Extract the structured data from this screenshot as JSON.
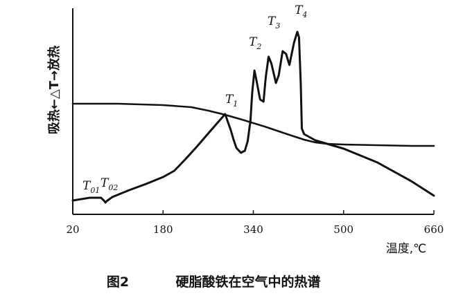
{
  "chart_data": {
    "type": "line",
    "title": "",
    "caption_label": "图2",
    "caption_text": "硬脂酸铁在空气中的热谱",
    "ylabel": "吸热←△T→放热",
    "xlabel": "温度,℃",
    "xlim": [
      20,
      660
    ],
    "xticks": [
      "20",
      "180",
      "340",
      "500",
      "660"
    ],
    "grid": false,
    "legend": "none",
    "line_color": "#111111",
    "series": [
      {
        "role": "dta",
        "x": [
          20,
          35,
          50,
          60,
          70,
          75,
          78,
          80,
          90,
          120,
          150,
          180,
          200,
          220,
          240,
          260,
          275,
          290,
          300,
          305,
          310,
          318,
          325,
          330,
          335,
          338,
          342,
          345,
          352,
          358,
          362,
          367,
          372,
          380,
          385,
          392,
          398,
          404,
          412,
          418,
          421,
          424,
          426,
          430,
          450,
          500,
          560,
          620,
          660
        ],
        "y": [
          20,
          22,
          24,
          24,
          24,
          20,
          17,
          19,
          25,
          35,
          44,
          54,
          63,
          80,
          98,
          117,
          131,
          145,
          122,
          108,
          96,
          89,
          92,
          106,
          136,
          176,
          208,
          196,
          166,
          163,
          198,
          228,
          218,
          190,
          201,
          236,
          232,
          216,
          248,
          264,
          256,
          190,
          124,
          116,
          107,
          95,
          75,
          48,
          27
        ]
      },
      {
        "role": "tga",
        "x": [
          20,
          100,
          180,
          230,
          260,
          290,
          320,
          360,
          400,
          430,
          450,
          470,
          500,
          560,
          620,
          660
        ],
        "y": [
          160,
          160,
          158,
          155,
          150,
          144,
          137,
          127,
          116,
          108,
          104,
          102,
          101,
          100,
          99,
          99
        ]
      }
    ],
    "annotations": [
      {
        "text": "T",
        "sub": "01",
        "x": 47,
        "y": 30
      },
      {
        "text": "T",
        "sub": "02",
        "x": 79,
        "y": 34
      },
      {
        "text": "T",
        "sub": "1",
        "x": 300,
        "y": 155
      },
      {
        "text": "T",
        "sub": "2",
        "x": 342,
        "y": 238
      },
      {
        "text": "T",
        "sub": "3",
        "x": 375,
        "y": 268
      },
      {
        "text": "T",
        "sub": "4",
        "x": 423,
        "y": 284
      }
    ]
  }
}
